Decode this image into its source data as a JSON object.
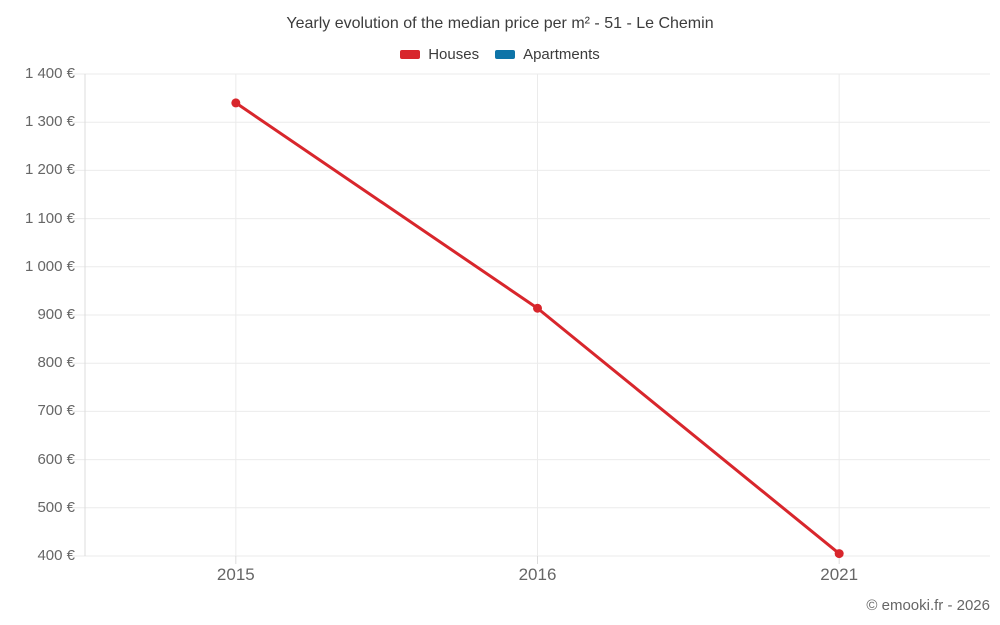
{
  "title": "Yearly evolution of the median price per m² - 51 - Le Chemin",
  "legend": {
    "items": [
      {
        "label": "Houses",
        "color": "#d8262c"
      },
      {
        "label": "Apartments",
        "color": "#0e74a8"
      }
    ]
  },
  "footer": "© emooki.fr - 2026",
  "chart_data": {
    "type": "line",
    "title": "Yearly evolution of the median price per m² - 51 - Le Chemin",
    "categories": [
      "2015",
      "2016",
      "2021"
    ],
    "series": [
      {
        "name": "Houses",
        "color": "#d8262c",
        "values": [
          1340,
          914,
          405
        ]
      },
      {
        "name": "Apartments",
        "color": "#0e74a8",
        "values": []
      }
    ],
    "xlabel": "",
    "ylabel": "",
    "ylim": [
      400,
      1400
    ],
    "ytick_step": 100,
    "yticks": [
      "400 €",
      "500 €",
      "600 €",
      "700 €",
      "800 €",
      "900 €",
      "1 000 €",
      "1 100 €",
      "1 200 €",
      "1 300 €",
      "1 400 €"
    ],
    "grid": true,
    "legend_position": "top",
    "marker_radius": 4.5,
    "line_width": 3
  },
  "colors": {
    "background": "#ffffff",
    "grid": "#ebebeb",
    "axis": "#dcdcdc",
    "tick_label": "#666666",
    "title": "#3c3c3c",
    "footer": "#666666"
  }
}
